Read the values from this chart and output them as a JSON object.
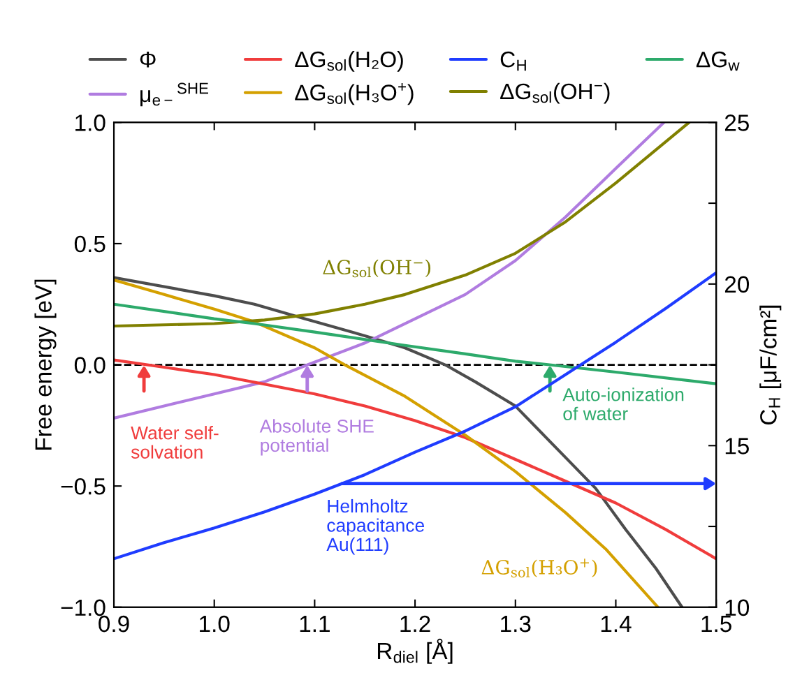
{
  "chart_data": {
    "type": "line",
    "xlabel": "R$_{diel}$ [Å]",
    "ylabel": "Free energy [eV]",
    "y2label": "C$_{H}$ [μF/cm²]",
    "xlim": [
      0.9,
      1.5
    ],
    "xticks": [
      {
        "value": 0.9,
        "label": "0.9"
      },
      {
        "value": 1.0,
        "label": "1.0"
      },
      {
        "value": 1.1,
        "label": "1.1"
      },
      {
        "value": 1.2,
        "label": "1.2"
      },
      {
        "value": 1.3,
        "label": "1.3"
      },
      {
        "value": 1.4,
        "label": "1.4"
      },
      {
        "value": 1.5,
        "label": "1.5"
      }
    ],
    "ylim": [
      -1.0,
      1.0
    ],
    "yticks": [
      {
        "value": -1.0,
        "label": "−1.0"
      },
      {
        "value": -0.5,
        "label": "−0.5"
      },
      {
        "value": 0.0,
        "label": "0.0"
      },
      {
        "value": 0.5,
        "label": "0.5"
      },
      {
        "value": 1.0,
        "label": "1.0"
      }
    ],
    "y2lim": [
      10,
      25
    ],
    "y2ticks": [
      10,
      {
        "value": 12.5,
        "label": null
      },
      15,
      {
        "value": 17.5,
        "label": null
      },
      20,
      {
        "value": 22.5,
        "label": null
      },
      25
    ],
    "grid": false,
    "legend": "top",
    "line_style": "solid",
    "series": [
      {
        "name": "Φ",
        "color": "#4d4d4d",
        "x": [
          0.9,
          1.0,
          1.04,
          1.09,
          1.15,
          1.19,
          1.23,
          1.26,
          1.3,
          1.34,
          1.38,
          1.41,
          1.44,
          1.466
        ],
        "values": [
          0.36,
          0.285,
          0.25,
          0.19,
          0.12,
          0.07,
          0.0,
          -0.07,
          -0.17,
          -0.34,
          -0.51,
          -0.68,
          -0.84,
          -1.0
        ]
      },
      {
        "name": "μ$_{e−}$$^{SHE}$",
        "color": "#b07ce0",
        "x": [
          0.9,
          0.95,
          1.0,
          1.05,
          1.093,
          1.15,
          1.2,
          1.25,
          1.3,
          1.35,
          1.4,
          1.448
        ],
        "values": [
          -0.22,
          -0.17,
          -0.12,
          -0.07,
          0.0,
          0.09,
          0.19,
          0.29,
          0.43,
          0.61,
          0.81,
          1.0
        ]
      },
      {
        "name": "ΔG$_{sol}$(H₂O)",
        "color": "#f03c3c",
        "x": [
          0.9,
          0.95,
          1.0,
          1.05,
          1.1,
          1.15,
          1.2,
          1.25,
          1.3,
          1.35,
          1.4,
          1.45,
          1.5
        ],
        "values": [
          0.02,
          -0.01,
          -0.04,
          -0.08,
          -0.12,
          -0.17,
          -0.23,
          -0.3,
          -0.39,
          -0.48,
          -0.57,
          -0.68,
          -0.8
        ]
      },
      {
        "name": "ΔG$_{sol}$(H₃O$^{+}$)",
        "color": "#d4a000",
        "x": [
          0.9,
          0.95,
          1.0,
          1.04,
          1.1,
          1.13,
          1.19,
          1.25,
          1.3,
          1.35,
          1.39,
          1.442
        ],
        "values": [
          0.35,
          0.29,
          0.23,
          0.177,
          0.07,
          0.0,
          -0.13,
          -0.29,
          -0.44,
          -0.61,
          -0.76,
          -1.0
        ]
      },
      {
        "name": "C$_{H}$",
        "color": "#1f3cff",
        "axis": "y2",
        "x": [
          0.9,
          0.95,
          1.0,
          1.05,
          1.1,
          1.15,
          1.2,
          1.25,
          1.3,
          1.35,
          1.4,
          1.45,
          1.5
        ],
        "values": [
          11.5,
          12.0,
          12.45,
          12.95,
          13.5,
          14.1,
          14.8,
          15.45,
          16.2,
          17.2,
          18.2,
          19.25,
          20.35
        ]
      },
      {
        "name": "ΔG$_{sol}$(OH$^{−}$)",
        "color": "#808000",
        "x": [
          0.9,
          1.0,
          1.05,
          1.1,
          1.15,
          1.19,
          1.25,
          1.3,
          1.35,
          1.4,
          1.473
        ],
        "values": [
          0.16,
          0.17,
          0.185,
          0.21,
          0.25,
          0.29,
          0.37,
          0.46,
          0.59,
          0.75,
          1.0
        ]
      },
      {
        "name": "ΔG$_{w}$",
        "color": "#2daa6b",
        "x": [
          0.9,
          1.0,
          1.04,
          1.1,
          1.19,
          1.25,
          1.3,
          1.334,
          1.4,
          1.5
        ],
        "values": [
          0.25,
          0.19,
          0.17,
          0.135,
          0.08,
          0.045,
          0.015,
          0.0,
          -0.03,
          -0.078
        ]
      }
    ],
    "ref_lines": [
      {
        "axis": "y",
        "value": 0.0,
        "color": "#000000",
        "line_style": "dashed"
      }
    ],
    "annotations": [
      "Water self-\nsolvation",
      "Absolute SHE\npotential",
      "Auto-ionization\nof water",
      "Helmholtz\ncapacitance\nAu(111)",
      "ΔG$_{sol}$(OH$^{−}$)",
      "ΔG$_{sol}$(H₃O$^{+}$)"
    ]
  }
}
